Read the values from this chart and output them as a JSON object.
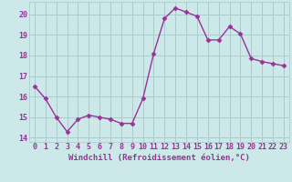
{
  "x": [
    0,
    1,
    2,
    3,
    4,
    5,
    6,
    7,
    8,
    9,
    10,
    11,
    12,
    13,
    14,
    15,
    16,
    17,
    18,
    19,
    20,
    21,
    22,
    23
  ],
  "y": [
    16.5,
    15.9,
    15.0,
    14.3,
    14.9,
    15.1,
    15.0,
    14.9,
    14.7,
    14.7,
    15.9,
    18.1,
    19.8,
    20.3,
    20.1,
    19.9,
    18.75,
    18.75,
    19.4,
    19.05,
    17.85,
    17.7,
    17.6,
    17.5
  ],
  "line_color": "#993399",
  "marker": "D",
  "marker_size": 2.5,
  "bg_color": "#cce8e8",
  "grid_color": "#aacccc",
  "xlabel": "Windchill (Refroidissement éolien,°C)",
  "xlabel_color": "#993399",
  "tick_color": "#993399",
  "ylim": [
    13.8,
    20.6
  ],
  "xlim": [
    -0.5,
    23.5
  ],
  "yticks": [
    14,
    15,
    16,
    17,
    18,
    19,
    20
  ],
  "xticks": [
    0,
    1,
    2,
    3,
    4,
    5,
    6,
    7,
    8,
    9,
    10,
    11,
    12,
    13,
    14,
    15,
    16,
    17,
    18,
    19,
    20,
    21,
    22,
    23
  ],
  "xlabel_fontsize": 6.5,
  "tick_fontsize": 6.0,
  "linewidth": 1.0
}
